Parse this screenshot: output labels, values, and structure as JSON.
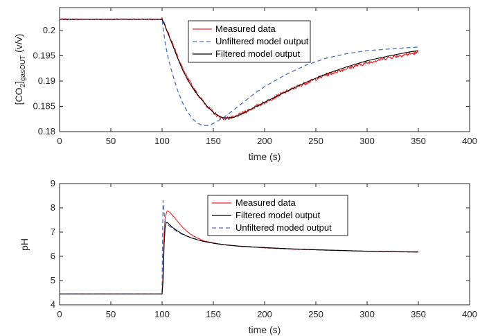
{
  "chart_data": [
    {
      "type": "line",
      "xlabel": "time (s)",
      "ylabel": "[CO2]gasOUT (v/v)",
      "ylabel_parts": {
        "pre": "[CO",
        "sub1": "2",
        "mid": "]",
        "sub2": "gasOUT",
        "post": " (v/v)"
      },
      "xlim": [
        0,
        400
      ],
      "ylim": [
        0.18,
        0.2045
      ],
      "xticks": [
        0,
        50,
        100,
        150,
        200,
        250,
        300,
        350,
        400
      ],
      "yticks": [
        0.18,
        0.185,
        0.19,
        0.195,
        0.2
      ],
      "ytick_labels": [
        "0.18",
        "0.185",
        "0.19",
        "0.195",
        "0.2"
      ],
      "grid": false,
      "legend_position": "top-center",
      "series": [
        {
          "name": "Measured data",
          "color": "#e8262b",
          "style": "solid",
          "noise": 0.00035,
          "x": [
            0,
            100,
            102,
            105,
            110,
            115,
            120,
            125,
            130,
            135,
            140,
            145,
            150,
            155,
            160,
            170,
            180,
            190,
            200,
            220,
            240,
            260,
            280,
            300,
            320,
            340,
            350
          ],
          "y": [
            0.2022,
            0.2022,
            0.2015,
            0.2,
            0.1975,
            0.195,
            0.1925,
            0.1905,
            0.1888,
            0.1873,
            0.186,
            0.1848,
            0.1838,
            0.183,
            0.1826,
            0.1828,
            0.1838,
            0.1848,
            0.1858,
            0.1878,
            0.1896,
            0.1912,
            0.1925,
            0.1936,
            0.1946,
            0.1953,
            0.1956
          ]
        },
        {
          "name": "Unfiltered model output",
          "color": "#4a72c0",
          "style": "dashed",
          "x": [
            0,
            100,
            101,
            103,
            106,
            110,
            115,
            120,
            125,
            130,
            135,
            140,
            145,
            150,
            160,
            170,
            180,
            190,
            200,
            220,
            240,
            260,
            280,
            300,
            320,
            340,
            350
          ],
          "y": [
            0.2022,
            0.2022,
            0.2005,
            0.1975,
            0.1945,
            0.1915,
            0.1882,
            0.1857,
            0.1838,
            0.1825,
            0.1816,
            0.1812,
            0.1812,
            0.1816,
            0.1828,
            0.1843,
            0.1859,
            0.1875,
            0.1889,
            0.1912,
            0.1931,
            0.1945,
            0.1954,
            0.196,
            0.1963,
            0.1966,
            0.1967
          ]
        },
        {
          "name": "Filtered model output",
          "color": "#000000",
          "style": "solid",
          "x": [
            0,
            100,
            102,
            105,
            110,
            115,
            120,
            125,
            130,
            135,
            140,
            145,
            150,
            155,
            160,
            170,
            180,
            190,
            200,
            220,
            240,
            260,
            280,
            300,
            320,
            340,
            350
          ],
          "y": [
            0.2022,
            0.2022,
            0.2014,
            0.1998,
            0.1972,
            0.1946,
            0.1922,
            0.1902,
            0.1886,
            0.1872,
            0.186,
            0.1848,
            0.1838,
            0.1831,
            0.1827,
            0.1828,
            0.1837,
            0.1848,
            0.1858,
            0.1878,
            0.1897,
            0.1914,
            0.1928,
            0.194,
            0.1949,
            0.1957,
            0.196
          ]
        }
      ]
    },
    {
      "type": "line",
      "xlabel": "time (s)",
      "ylabel": "pH",
      "xlim": [
        0,
        400
      ],
      "ylim": [
        4,
        9
      ],
      "xticks": [
        0,
        50,
        100,
        150,
        200,
        250,
        300,
        350,
        400
      ],
      "yticks": [
        4,
        5,
        6,
        7,
        8,
        9
      ],
      "ytick_labels": [
        "4",
        "5",
        "6",
        "7",
        "8",
        "9"
      ],
      "grid": false,
      "legend_position": "top-center",
      "series": [
        {
          "name": "Measured data",
          "color": "#e8262b",
          "style": "solid",
          "noise": 0.012,
          "x": [
            0,
            100,
            101,
            102,
            103,
            105,
            108,
            112,
            116,
            120,
            125,
            130,
            140,
            150,
            160,
            175,
            200,
            225,
            250,
            275,
            300,
            325,
            350
          ],
          "y": [
            4.45,
            4.45,
            5.5,
            7.0,
            7.6,
            7.88,
            7.8,
            7.6,
            7.4,
            7.2,
            7.0,
            6.85,
            6.65,
            6.55,
            6.48,
            6.42,
            6.35,
            6.3,
            6.27,
            6.24,
            6.21,
            6.19,
            6.18
          ]
        },
        {
          "name": "Filtered model output",
          "color": "#000000",
          "style": "solid",
          "x": [
            0,
            100,
            101,
            102,
            103,
            104,
            105,
            107,
            110,
            115,
            120,
            125,
            130,
            140,
            150,
            160,
            175,
            200,
            225,
            250,
            275,
            300,
            325,
            350
          ],
          "y": [
            4.45,
            4.45,
            5.0,
            6.5,
            7.2,
            7.38,
            7.4,
            7.32,
            7.2,
            7.05,
            6.92,
            6.82,
            6.74,
            6.62,
            6.54,
            6.48,
            6.42,
            6.36,
            6.31,
            6.27,
            6.24,
            6.21,
            6.19,
            6.18
          ]
        },
        {
          "name": "Unfiltered moded output",
          "color": "#4a72c0",
          "style": "dashed",
          "x": [
            0,
            100,
            100.5,
            101,
            102,
            103,
            105,
            108,
            112,
            116,
            120,
            125,
            130,
            140,
            150,
            160,
            175,
            200,
            225,
            250,
            275,
            300,
            325,
            350
          ],
          "y": [
            4.45,
            4.45,
            6.8,
            8.3,
            7.8,
            7.45,
            7.32,
            7.22,
            7.1,
            6.98,
            6.9,
            6.82,
            6.75,
            6.62,
            6.54,
            6.48,
            6.42,
            6.36,
            6.31,
            6.27,
            6.24,
            6.21,
            6.19,
            6.18
          ]
        }
      ]
    }
  ]
}
